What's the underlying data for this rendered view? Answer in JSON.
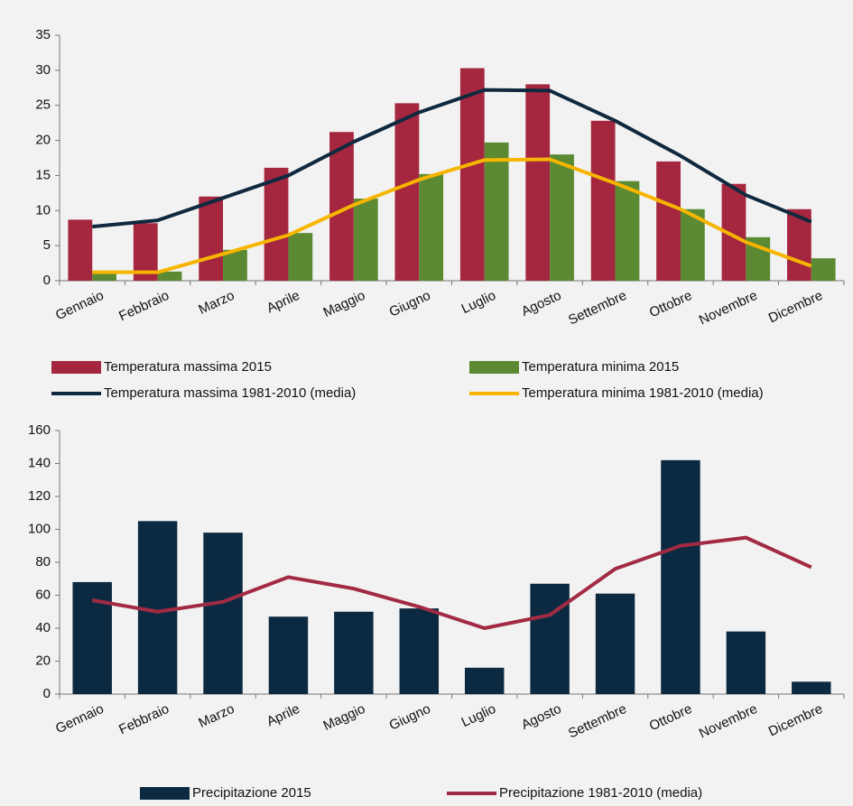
{
  "chart_data": [
    {
      "type": "bar",
      "categories": [
        "Gennaio",
        "Febbraio",
        "Marzo",
        "Aprile",
        "Maggio",
        "Giugno",
        "Luglio",
        "Agosto",
        "Settembre",
        "Ottobre",
        "Novembre",
        "Dicembre"
      ],
      "ylim": [
        0,
        35
      ],
      "yticks": [
        0,
        5,
        10,
        15,
        20,
        25,
        30,
        35
      ],
      "grid": false,
      "legend": "bottom",
      "series": [
        {
          "name": "Temperatura massima 2015",
          "type": "bar",
          "color": "#a5273f",
          "values": [
            8.7,
            8.2,
            12,
            16.1,
            21.2,
            25.3,
            30.3,
            28,
            22.8,
            17,
            13.8,
            10.2
          ]
        },
        {
          "name": "Temperatura minima 2015",
          "type": "bar",
          "color": "#5b8a33",
          "values": [
            1.2,
            1.3,
            4.4,
            6.8,
            11.7,
            15.2,
            19.7,
            18,
            14.2,
            10.2,
            6.2,
            3.2
          ]
        },
        {
          "name": "Temperatura massima 1981-2010 (media)",
          "type": "line",
          "color": "#10293f",
          "values": [
            7.7,
            8.6,
            11.8,
            15,
            19.8,
            24,
            27.2,
            27.1,
            22.8,
            17.8,
            12.2,
            8.4
          ]
        },
        {
          "name": "Temperatura minima 1981-2010 (media)",
          "type": "line",
          "color": "#f7b500",
          "values": [
            1.2,
            1.2,
            3.8,
            6.5,
            10.8,
            14.4,
            17.2,
            17.3,
            13.9,
            10.2,
            5.5,
            2.1
          ]
        }
      ]
    },
    {
      "type": "bar",
      "categories": [
        "Gennaio",
        "Febbraio",
        "Marzo",
        "Aprile",
        "Maggio",
        "Giugno",
        "Luglio",
        "Agosto",
        "Settembre",
        "Ottobre",
        "Novembre",
        "Dicembre"
      ],
      "ylim": [
        0,
        160
      ],
      "yticks": [
        0,
        20,
        40,
        60,
        80,
        100,
        120,
        140,
        160
      ],
      "grid": false,
      "legend": "bottom",
      "series": [
        {
          "name": "Precipitazione 2015",
          "type": "bar",
          "color": "#0b2a42",
          "values": [
            68,
            105,
            98,
            47,
            50,
            52,
            16,
            67,
            61,
            142,
            38,
            7.5
          ]
        },
        {
          "name": "Precipitazione 1981-2010 (media)",
          "type": "line",
          "color": "#a32a43",
          "values": [
            57,
            50,
            56,
            71,
            64,
            53,
            40,
            48,
            76,
            90,
            95,
            77
          ]
        }
      ]
    }
  ]
}
